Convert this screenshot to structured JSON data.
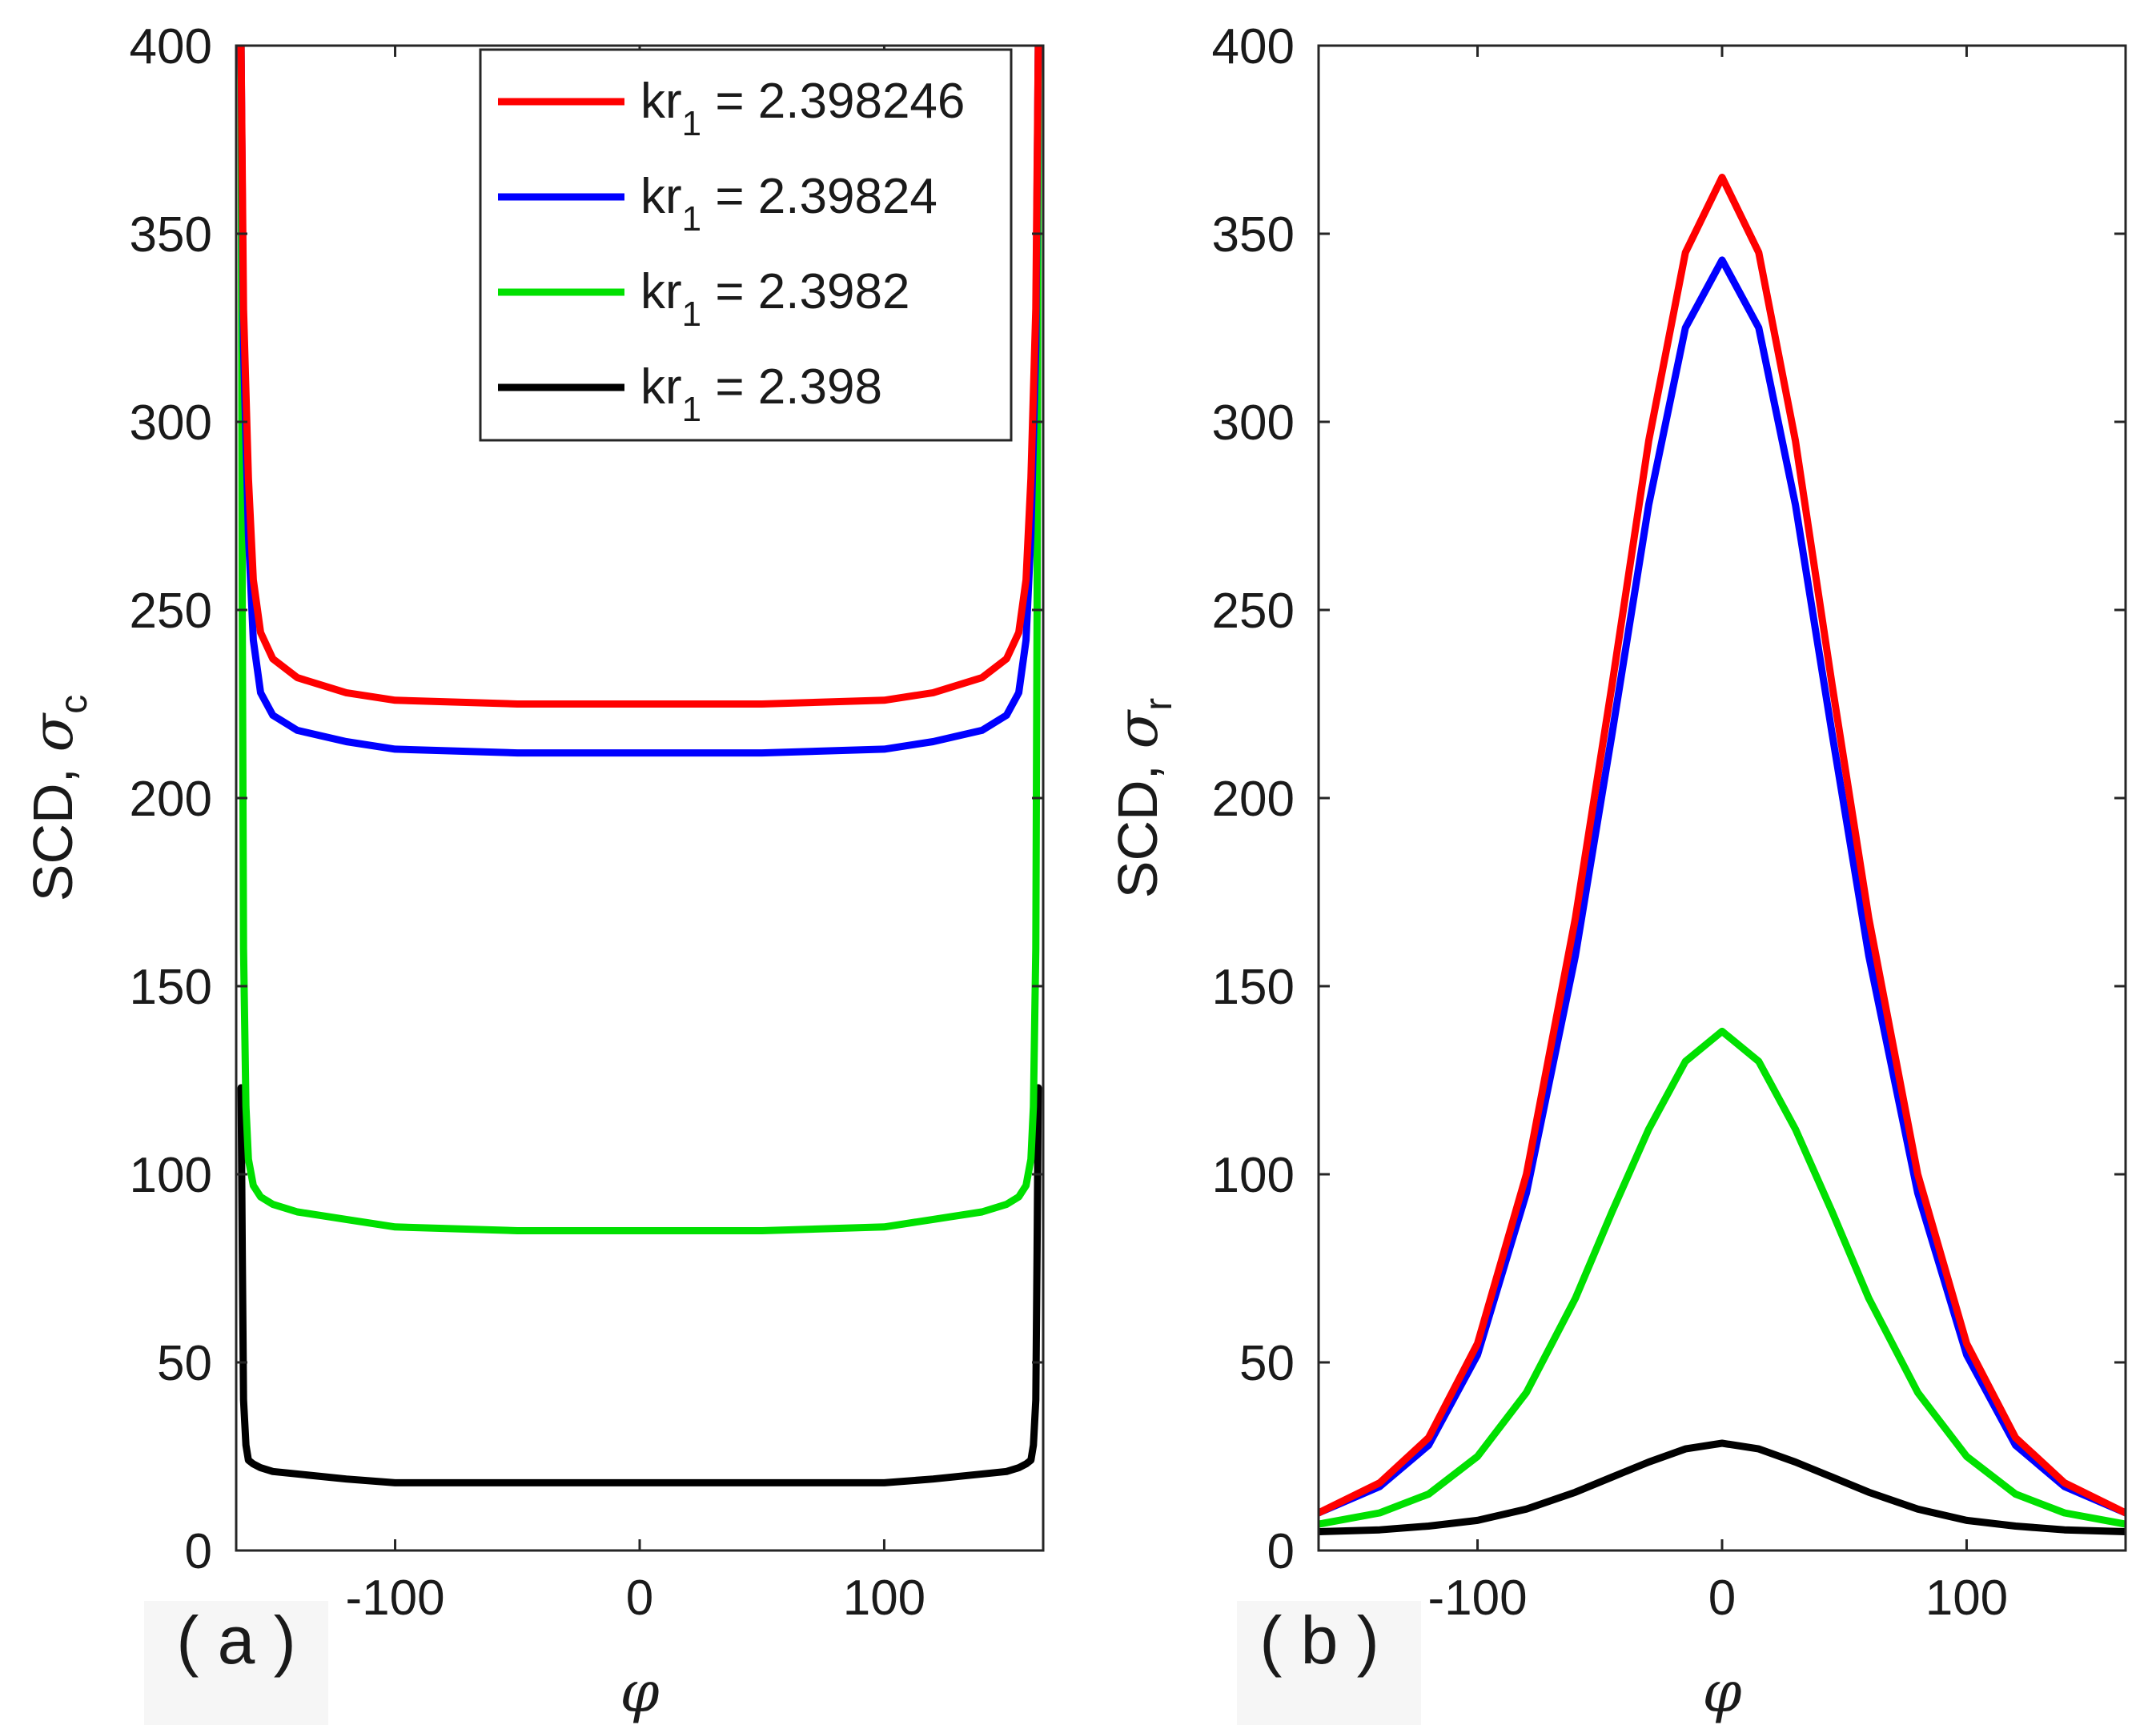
{
  "chart_data": [
    {
      "panel": "a",
      "type": "line",
      "panel_tag": "( a )",
      "xlabel": "φ",
      "ylabel_prefix": "SCD, ",
      "ylabel_symbol": "σ",
      "ylabel_subscript": "c",
      "xlim": [
        -165,
        165
      ],
      "ylim": [
        0,
        400
      ],
      "xticks": [
        -100,
        0,
        100
      ],
      "yticks": [
        0,
        50,
        100,
        150,
        200,
        250,
        300,
        350,
        400
      ],
      "legend": {
        "placement": "top-right",
        "entries": [
          {
            "prefix": "kr",
            "sub": "1",
            "value": " = 2.398246",
            "color": "#ff0000"
          },
          {
            "prefix": "kr",
            "sub": "1",
            "value": " = 2.39824",
            "color": "#0000ff"
          },
          {
            "prefix": "kr",
            "sub": "1",
            "value": " = 2.3982",
            "color": "#00e000"
          },
          {
            "prefix": "kr",
            "sub": "1",
            "value": " = 2.398",
            "color": "#000000"
          }
        ]
      },
      "series": [
        {
          "name": "kr1 = 2.398246",
          "color": "#ff0000",
          "x": [
            -163,
            -162,
            -160,
            -158,
            -155,
            -150,
            -140,
            -120,
            -100,
            -50,
            0,
            50,
            100,
            120,
            140,
            150,
            155,
            158,
            160,
            162,
            163
          ],
          "y": [
            400,
            330,
            285,
            258,
            244,
            237,
            232,
            228,
            226,
            225,
            225,
            225,
            226,
            228,
            232,
            237,
            244,
            258,
            285,
            330,
            400
          ]
        },
        {
          "name": "kr1 = 2.39824",
          "color": "#0000ff",
          "x": [
            -163,
            -162,
            -160,
            -158,
            -155,
            -150,
            -140,
            -120,
            -100,
            -50,
            0,
            50,
            100,
            120,
            140,
            150,
            155,
            158,
            160,
            162,
            163
          ],
          "y": [
            400,
            320,
            270,
            242,
            228,
            222,
            218,
            215,
            213,
            212,
            212,
            212,
            213,
            215,
            218,
            222,
            228,
            242,
            270,
            320,
            400
          ]
        },
        {
          "name": "kr1 = 2.3982",
          "color": "#00e000",
          "x": [
            -163,
            -162.5,
            -162,
            -161,
            -160,
            -158,
            -155,
            -150,
            -140,
            -120,
            -100,
            -50,
            0,
            50,
            100,
            120,
            140,
            150,
            155,
            158,
            160,
            161,
            162,
            162.5,
            163
          ],
          "y": [
            400,
            250,
            160,
            118,
            104,
            97,
            94,
            92,
            90,
            88,
            86,
            85,
            85,
            85,
            86,
            88,
            90,
            92,
            94,
            97,
            104,
            118,
            160,
            250,
            400
          ]
        },
        {
          "name": "kr1 = 2.398",
          "color": "#000000",
          "x": [
            -163,
            -162.5,
            -162,
            -161,
            -160,
            -158,
            -155,
            -150,
            -120,
            -100,
            -50,
            0,
            50,
            100,
            120,
            150,
            155,
            158,
            160,
            161,
            162,
            162.5,
            163
          ],
          "y": [
            123,
            80,
            40,
            28,
            24,
            23,
            22,
            21,
            19,
            18,
            18,
            18,
            18,
            18,
            19,
            21,
            22,
            23,
            24,
            28,
            40,
            80,
            123
          ]
        }
      ]
    },
    {
      "panel": "b",
      "type": "line",
      "panel_tag": "( b )",
      "xlabel": "φ",
      "ylabel_prefix": "SCD, ",
      "ylabel_symbol": "σ",
      "ylabel_subscript": "r",
      "xlim": [
        -165,
        165
      ],
      "ylim": [
        0,
        400
      ],
      "xticks": [
        -100,
        0,
        100
      ],
      "yticks": [
        0,
        50,
        100,
        150,
        200,
        250,
        300,
        350,
        400
      ],
      "series": [
        {
          "name": "kr1 = 2.398246",
          "color": "#ff0000",
          "x": [
            -165,
            -140,
            -120,
            -100,
            -80,
            -60,
            -45,
            -30,
            -15,
            0,
            15,
            30,
            45,
            60,
            80,
            100,
            120,
            140,
            165
          ],
          "y": [
            10,
            18,
            30,
            55,
            100,
            168,
            230,
            295,
            345,
            365,
            345,
            295,
            230,
            168,
            100,
            55,
            30,
            18,
            10
          ]
        },
        {
          "name": "kr1 = 2.39824",
          "color": "#0000ff",
          "x": [
            -165,
            -140,
            -120,
            -100,
            -80,
            -60,
            -45,
            -30,
            -15,
            0,
            15,
            30,
            45,
            60,
            80,
            100,
            120,
            140,
            165
          ],
          "y": [
            10,
            17,
            28,
            52,
            95,
            158,
            217,
            278,
            325,
            343,
            325,
            278,
            217,
            158,
            95,
            52,
            28,
            17,
            10
          ]
        },
        {
          "name": "kr1 = 2.3982",
          "color": "#00e000",
          "x": [
            -165,
            -140,
            -120,
            -100,
            -80,
            -60,
            -45,
            -30,
            -15,
            0,
            15,
            30,
            45,
            60,
            80,
            100,
            120,
            140,
            165
          ],
          "y": [
            7,
            10,
            15,
            25,
            42,
            67,
            90,
            112,
            130,
            138,
            130,
            112,
            90,
            67,
            42,
            25,
            15,
            10,
            7
          ]
        },
        {
          "name": "kr1 = 2.398",
          "color": "#000000",
          "x": [
            -165,
            -140,
            -120,
            -100,
            -80,
            -60,
            -45,
            -30,
            -15,
            0,
            15,
            30,
            45,
            60,
            80,
            100,
            120,
            140,
            165
          ],
          "y": [
            5,
            5.5,
            6.5,
            8,
            11,
            15.5,
            19.5,
            23.5,
            27,
            28.5,
            27,
            23.5,
            19.5,
            15.5,
            11,
            8,
            6.5,
            5.5,
            5
          ]
        }
      ]
    }
  ]
}
